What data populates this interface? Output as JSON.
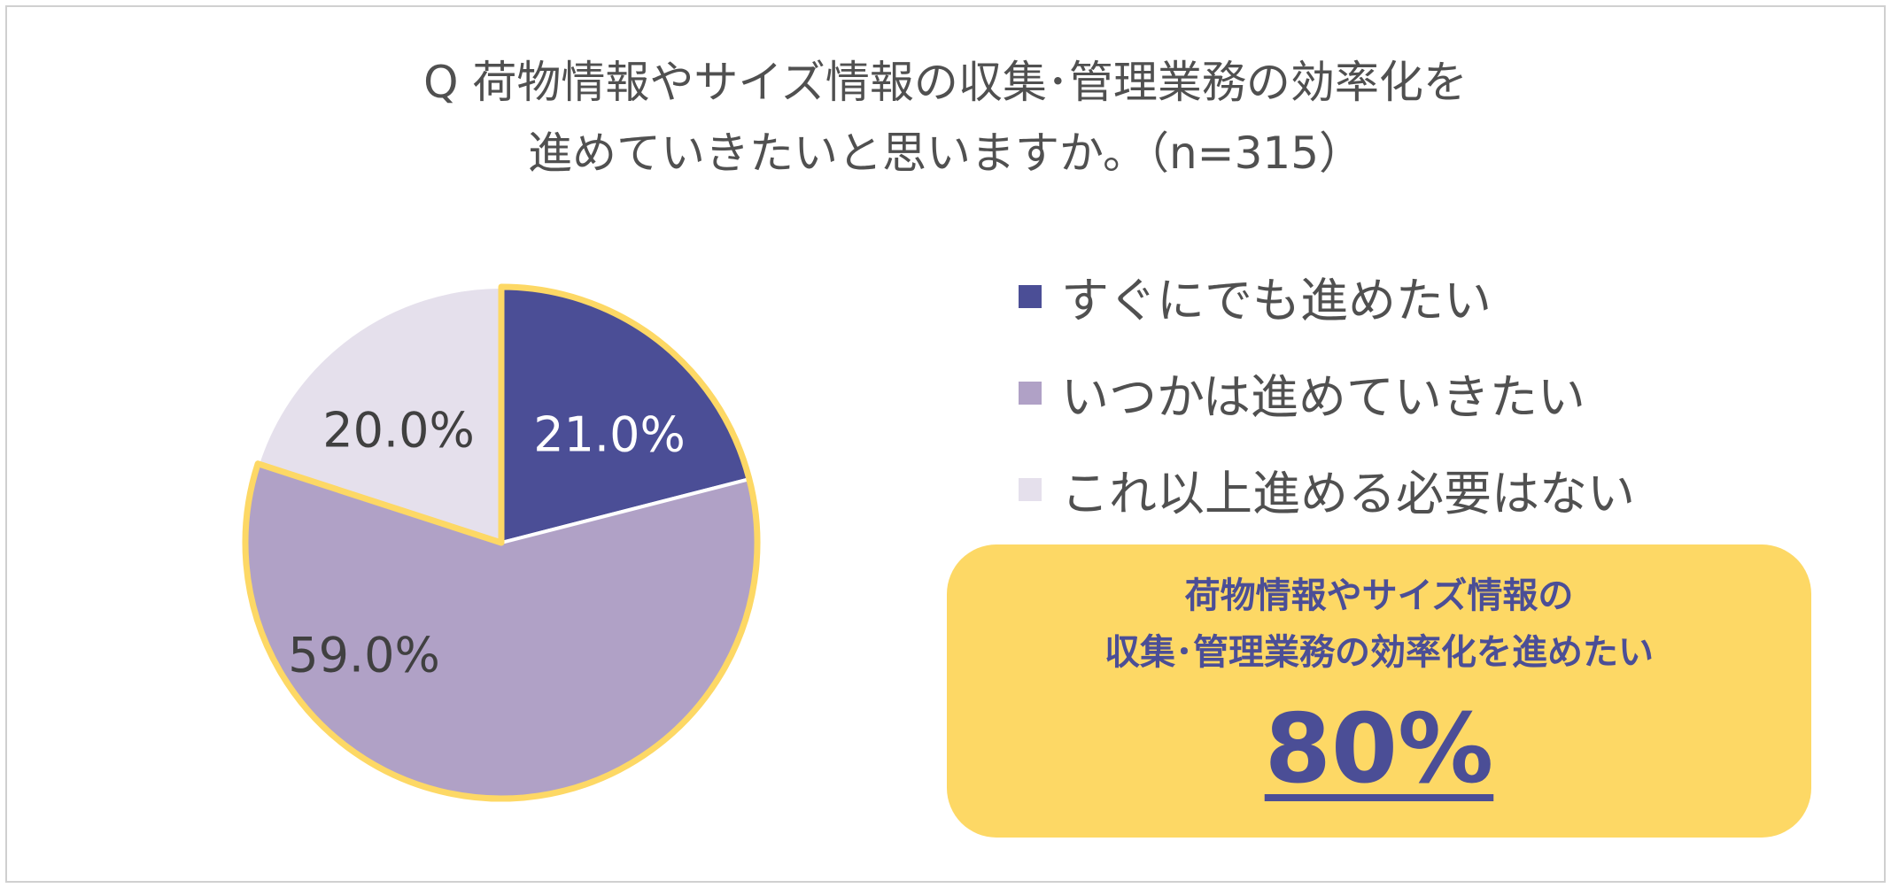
{
  "title": {
    "line1": "Q 荷物情報やサイズ情報の収集･管理業務の効率化を",
    "line2": "進めていきたいと思いますか。（n=315）"
  },
  "chart_data": {
    "type": "pie",
    "title": "Q 荷物情報やサイズ情報の収集･管理業務の効率化を進めていきたいと思いますか。（n=315）",
    "start": "12 o'clock, clockwise",
    "legend_position": "right",
    "slices": [
      {
        "name": "すぐにでも進めたい",
        "value": 21.0,
        "label": "21.0%",
        "color": "#4B4E96",
        "label_color": "#ffffff"
      },
      {
        "name": "いつかは進めていきたい",
        "value": 59.0,
        "label": "59.0%",
        "color": "#B0A1C6",
        "label_color": "#404040"
      },
      {
        "name": "これ以上進める必要はない",
        "value": 20.0,
        "label": "20.0%",
        "color": "#E5E0EC",
        "label_color": "#404040"
      }
    ],
    "highlight_color": "#FDD865"
  },
  "callout": {
    "line1": "荷物情報やサイズ情報の",
    "line2": "収集･管理業務の効率化を進めたい",
    "value": "80%",
    "background": "#FDD865",
    "text_color": "#4B4E96"
  }
}
